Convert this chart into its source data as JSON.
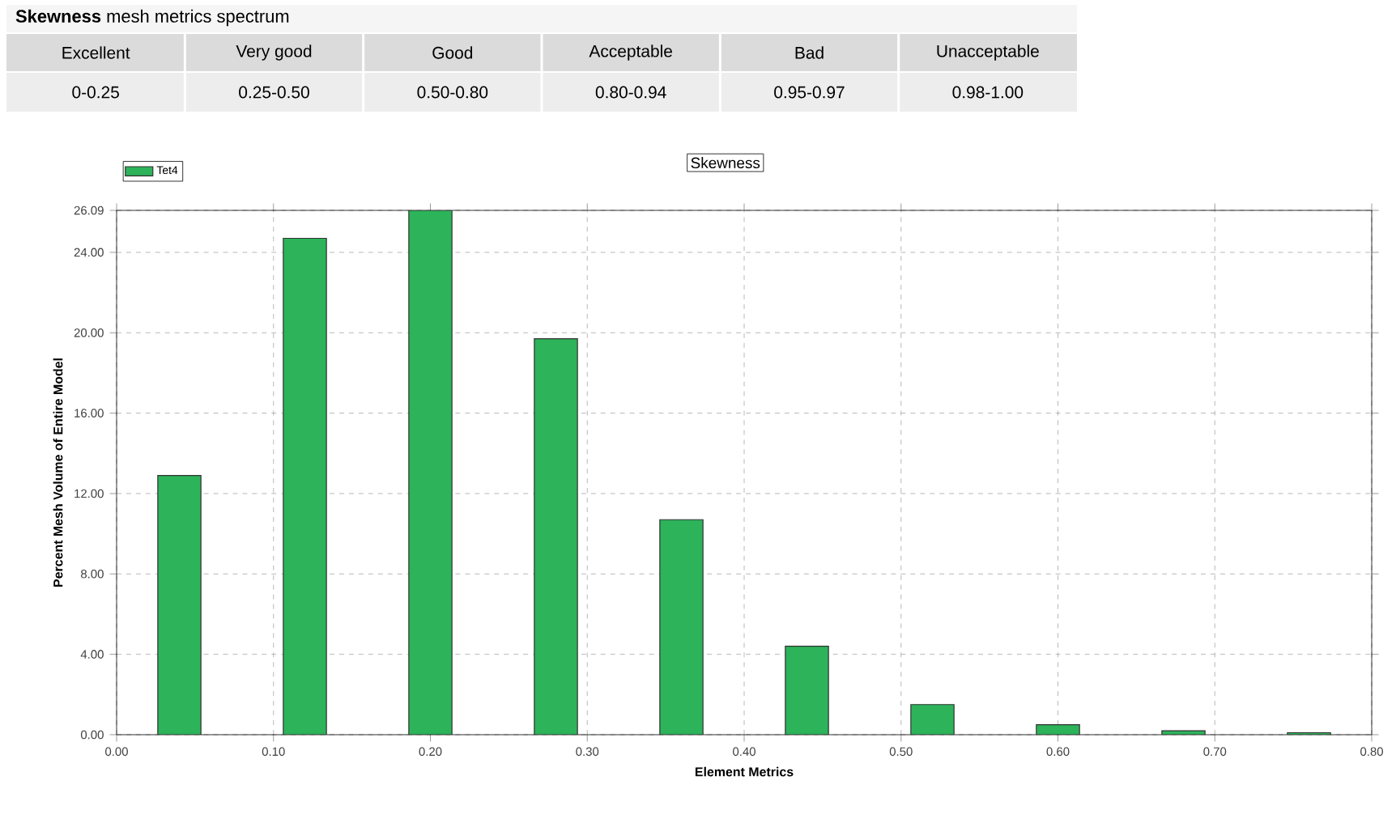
{
  "chart_data": [
    {
      "type": "other",
      "title": "**Skewness** mesh metrics spectrum",
      "categories": [
        "Excellent",
        "Very good",
        "Good",
        "Acceptable",
        "Bad",
        "Unacceptable"
      ],
      "annotations": [
        "0-0.25",
        "0.25-0.50",
        "0.50-0.80",
        "0.80-0.94",
        "0.95-0.97",
        "0.98-1.00"
      ]
    },
    {
      "type": "bar",
      "title": "Skewness",
      "xlabel": "Element Metrics",
      "ylabel": "Percent Mesh Volume of Entire Model",
      "x": [
        0.04,
        0.12,
        0.2,
        0.28,
        0.36,
        0.44,
        0.52,
        0.6,
        0.68,
        0.76
      ],
      "series": [
        {
          "name": "Tet4",
          "color": "#2db35a",
          "values": [
            12.9,
            24.7,
            26.09,
            19.7,
            10.7,
            4.4,
            1.5,
            0.5,
            0.2,
            0.1
          ]
        }
      ],
      "xlim": [
        0,
        0.8
      ],
      "xticks": [
        {
          "value": 0,
          "label": "0.00"
        },
        {
          "value": 0.1,
          "label": "0.10"
        },
        {
          "value": 0.2,
          "label": "0.20"
        },
        {
          "value": 0.3,
          "label": "0.30"
        },
        {
          "value": 0.4,
          "label": "0.40"
        },
        {
          "value": 0.5,
          "label": "0.50"
        },
        {
          "value": 0.6,
          "label": "0.60"
        },
        {
          "value": 0.7,
          "label": "0.70"
        },
        {
          "value": 0.8,
          "label": "0.80"
        }
      ],
      "ylim": [
        0,
        26.09
      ],
      "yticks": [
        {
          "value": 0,
          "label": "0.00"
        },
        {
          "value": 4,
          "label": "4.00"
        },
        {
          "value": 8,
          "label": "8.00"
        },
        {
          "value": 12,
          "label": "12.00"
        },
        {
          "value": 16,
          "label": "16.00"
        },
        {
          "value": 20,
          "label": "20.00"
        },
        {
          "value": 24,
          "label": "24.00"
        },
        26.09
      ],
      "grid": true,
      "line_style": "dashed",
      "legend": "top left"
    }
  ]
}
